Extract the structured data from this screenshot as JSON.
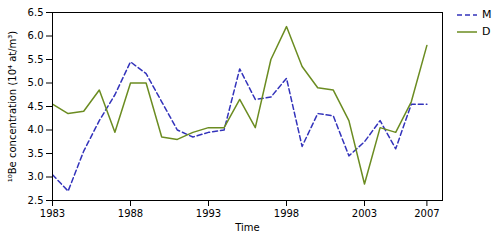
{
  "chart_data": {
    "type": "line",
    "xlabel": "Time",
    "ylabel": "¹⁰Be concentration (10⁴ at/m³)",
    "x": [
      1983,
      1984,
      1985,
      1986,
      1987,
      1988,
      1989,
      1990,
      1991,
      1992,
      1993,
      1994,
      1995,
      1996,
      1997,
      1998,
      1999,
      2000,
      2001,
      2002,
      2003,
      2004,
      2005,
      2006,
      2007
    ],
    "series": [
      {
        "name": "M",
        "color": "#3333bb",
        "line_style": "dashed",
        "values": [
          3.05,
          2.7,
          3.55,
          4.2,
          4.75,
          5.45,
          5.2,
          4.6,
          4.0,
          3.85,
          3.95,
          4.0,
          5.3,
          4.65,
          4.7,
          5.1,
          3.65,
          4.35,
          4.3,
          3.45,
          3.75,
          4.2,
          3.6,
          4.55,
          4.55
        ]
      },
      {
        "name": "D",
        "color": "#6b8c21",
        "line_style": "solid",
        "values": [
          4.55,
          4.35,
          4.4,
          4.85,
          3.95,
          5.0,
          5.0,
          3.85,
          3.8,
          3.95,
          4.05,
          4.05,
          4.65,
          4.05,
          5.5,
          6.2,
          5.35,
          4.9,
          4.85,
          4.2,
          2.85,
          4.05,
          3.95,
          4.6,
          5.8
        ]
      }
    ],
    "xlim": [
      1983,
      2008
    ],
    "xticks": [
      1983,
      1988,
      1993,
      1998,
      2003,
      2007
    ],
    "ylim": [
      2.5,
      6.5
    ],
    "yticks": [
      2.5,
      {
        "value": 3.0,
        "label": "3.0"
      },
      3.5,
      {
        "value": 4.0,
        "label": "4.0"
      },
      4.5,
      {
        "value": 5.0,
        "label": "5.0"
      },
      5.5,
      {
        "value": 6.0,
        "label": "6.0"
      },
      6.5
    ],
    "grid": false,
    "legend": "upper-right"
  }
}
